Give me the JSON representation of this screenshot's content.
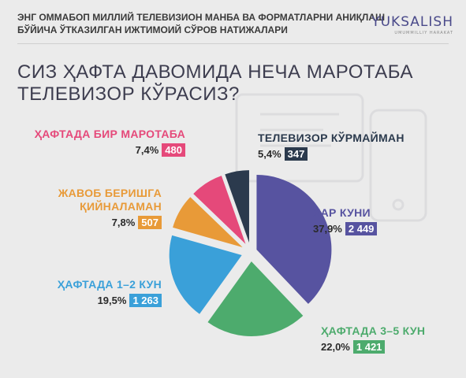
{
  "header": {
    "line1": "ЭНГ ОММАБОП МИЛЛИЙ ТЕЛЕВИЗИОН МАНБА ВА ФОРМАТЛАРНИ АНИҚЛАШ",
    "line2": "БЎЙИЧА ЎТКАЗИЛГАН ИЖТИМОИЙ СЎРОВ НАТИЖАЛАРИ"
  },
  "logo": {
    "main": "YUKSALISH",
    "sub": "UMUMMILLIY HARAKAT"
  },
  "question": {
    "line1": "СИЗ ҲАФТА ДАВОМИДА НЕЧА МАРОТАБА",
    "line2": "ТЕЛЕВИЗОР КЎРАСИЗ?"
  },
  "colors": {
    "daily": "#5753a0",
    "three_five": "#4dab6d",
    "one_two": "#3aa0d9",
    "hard": "#e89a38",
    "once": "#e5497a",
    "none": "#2b3a4d"
  },
  "chart_data": {
    "type": "pie",
    "slices": [
      {
        "label": "ҲАР КУНИ",
        "percent_label": "37,9%",
        "count_label": "2 449",
        "value": 37.9,
        "count": 2449,
        "color": "#5753a0"
      },
      {
        "label": "ҲАФТАДА 3–5 КУН",
        "percent_label": "22,0%",
        "count_label": "1 421",
        "value": 22.0,
        "count": 1421,
        "color": "#4dab6d"
      },
      {
        "label": "ҲАФТАДА 1–2 КУН",
        "percent_label": "19,5%",
        "count_label": "1 263",
        "value": 19.5,
        "count": 1263,
        "color": "#3aa0d9"
      },
      {
        "label_lines": [
          "ЖАВОБ БЕРИШГА",
          "ҚИЙНАЛАМАН"
        ],
        "percent_label": "7,8%",
        "count_label": "507",
        "value": 7.8,
        "count": 507,
        "color": "#e89a38"
      },
      {
        "label": "ҲАФТАДА БИР МАРОТАБА",
        "percent_label": "7,4%",
        "count_label": "480",
        "value": 7.4,
        "count": 480,
        "color": "#e5497a"
      },
      {
        "label": "ТЕЛЕВИЗОР КЎРМАЙМАН",
        "percent_label": "5,4%",
        "count_label": "347",
        "value": 5.4,
        "count": 347,
        "color": "#2b3a4d"
      }
    ]
  }
}
